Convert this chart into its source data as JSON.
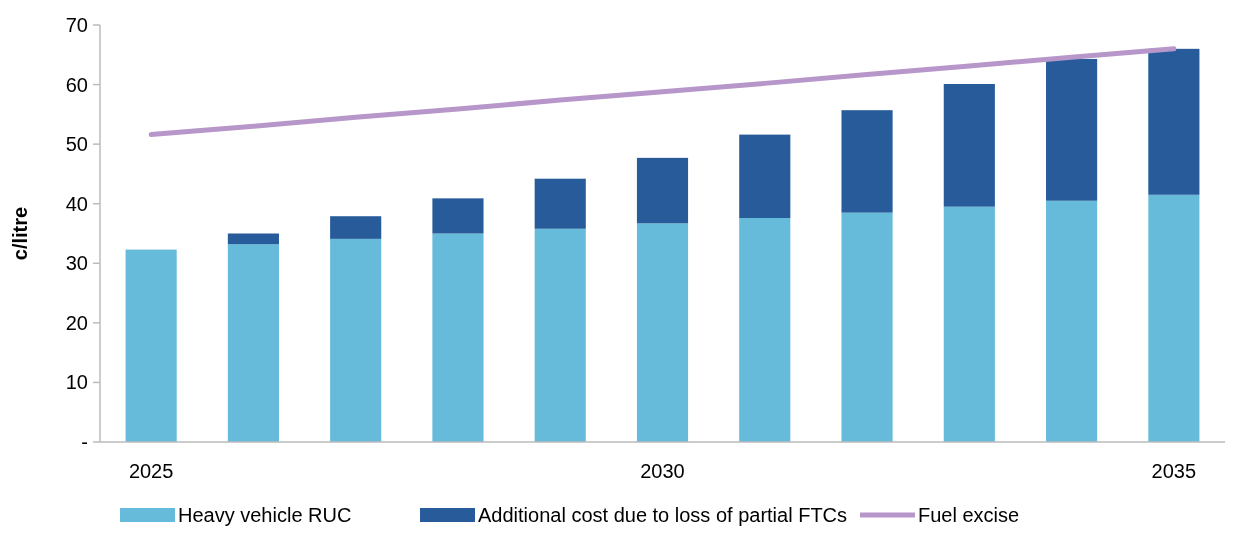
{
  "chart_data": {
    "type": "bar",
    "stacked": true,
    "ylabel": "c/litre",
    "categories": [
      "2025",
      null,
      null,
      null,
      null,
      "2030",
      null,
      null,
      null,
      null,
      "2035"
    ],
    "series": [
      {
        "name": "Heavy vehicle RUC",
        "color": "#66bbdb",
        "values": [
          32.3,
          33.2,
          34.1,
          35.0,
          35.8,
          36.7,
          37.6,
          38.5,
          39.5,
          40.5,
          41.5
        ]
      },
      {
        "name": "Additional cost due to loss of partial FTCs",
        "color": "#275b9a",
        "values": [
          0,
          1.8,
          3.8,
          5.9,
          8.4,
          11.0,
          14.0,
          17.2,
          20.6,
          23.8,
          24.5
        ]
      },
      {
        "name": "Fuel excise",
        "type": "line",
        "color": "#b796c9",
        "values": [
          51.6,
          53.0,
          54.5,
          55.9,
          57.4,
          58.8,
          60.2,
          61.7,
          63.1,
          64.6,
          66.0
        ]
      }
    ],
    "ylim": [
      0,
      70
    ],
    "yticks": [
      {
        "value": 0,
        "label": "-"
      },
      10,
      20,
      30,
      40,
      50,
      60,
      70
    ],
    "grid": false,
    "legend": "bottom"
  }
}
